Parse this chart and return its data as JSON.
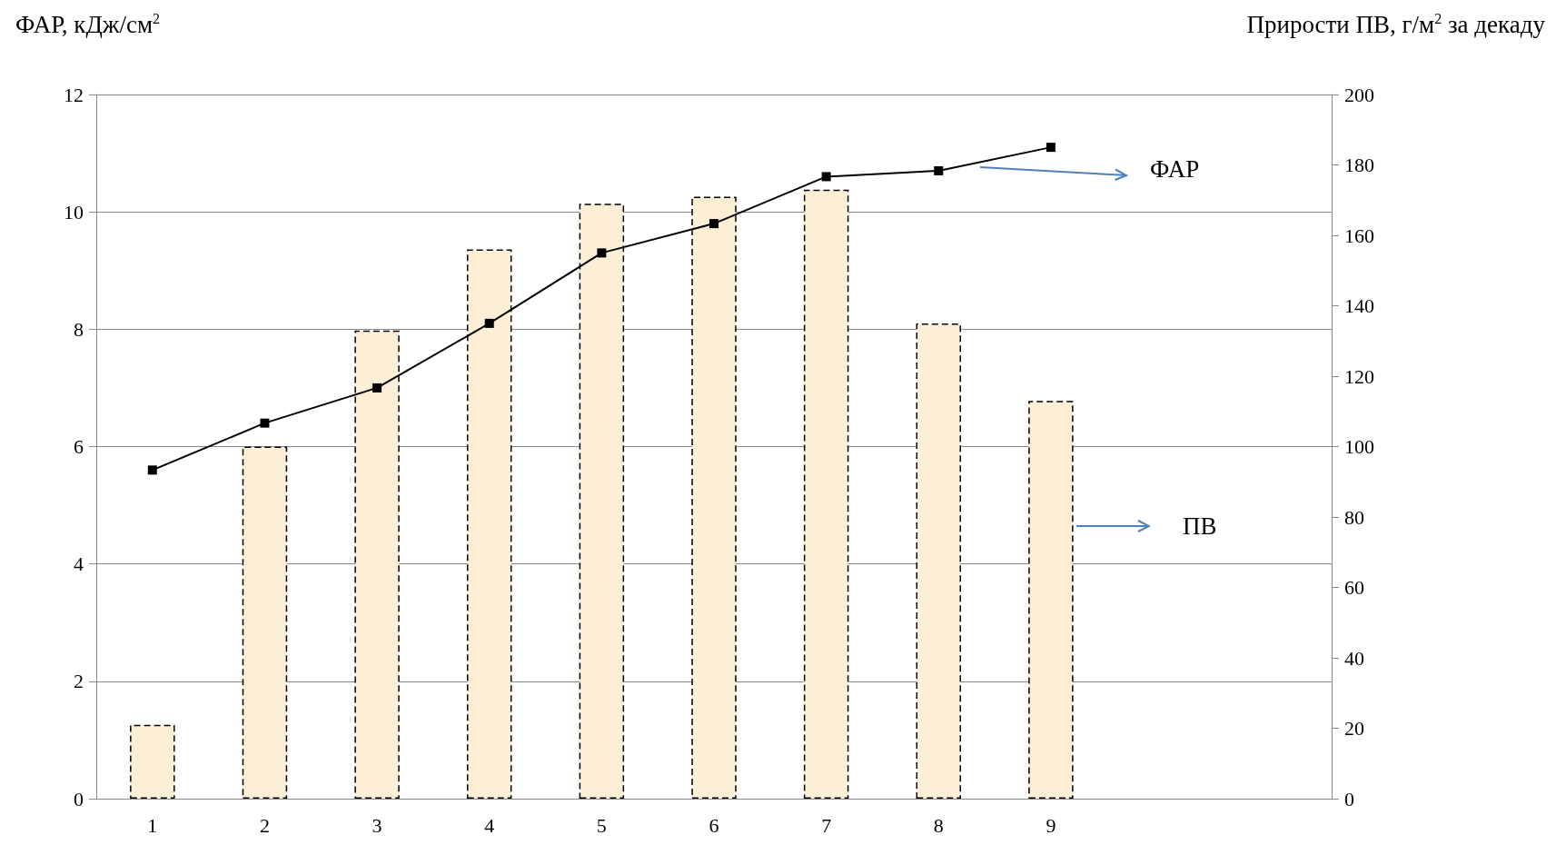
{
  "chart_data": {
    "type": "bar",
    "ylabel": "ФАР, кДж/см$^{2}$",
    "y2label": "Прирости ПВ, г/м$^{2}$ за декаду",
    "categories": [
      "1",
      "2",
      "3",
      "4",
      "5",
      "6",
      "7",
      "8",
      "9",
      null,
      null
    ],
    "series": [
      {
        "name": "ПВ",
        "axis": "y2",
        "color": "#fcefd6",
        "line_style": "dashed",
        "values": [
          21,
          100,
          133,
          156,
          169,
          171,
          173,
          135,
          113,
          null,
          null
        ]
      },
      {
        "name": "ФАР",
        "type": "line",
        "color": "#000000",
        "marker": "square",
        "values": [
          5.6,
          6.4,
          7.0,
          8.1,
          9.3,
          9.8,
          10.6,
          10.7,
          11.1,
          null,
          null
        ]
      }
    ],
    "ylim": [
      0,
      12
    ],
    "yticks": [
      0,
      2,
      4,
      6,
      8,
      10,
      12
    ],
    "y2lim": [
      0,
      200
    ],
    "y2ticks": [
      0,
      20,
      40,
      60,
      80,
      100,
      120,
      140,
      160,
      180,
      200
    ],
    "grid": "y",
    "legend": false
  }
}
